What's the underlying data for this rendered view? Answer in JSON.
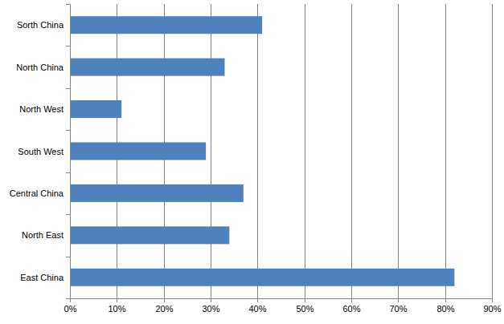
{
  "chart_data": {
    "type": "bar",
    "orientation": "horizontal",
    "categories": [
      "Sorth China",
      "North China",
      "North West",
      "South West",
      "Central China",
      "North East",
      "East China"
    ],
    "values": [
      41,
      33,
      11,
      29,
      37,
      34,
      82
    ],
    "color": "#4f81bd",
    "xlim": [
      0,
      90
    ],
    "xticks": [
      {
        "value": 0,
        "label": "0%"
      },
      {
        "value": 10,
        "label": "10%"
      },
      {
        "value": 20,
        "label": "20%"
      },
      {
        "value": 30,
        "label": "30%"
      },
      {
        "value": 40,
        "label": "40%"
      },
      {
        "value": 50,
        "label": "50%"
      },
      {
        "value": 60,
        "label": "60%"
      },
      {
        "value": 70,
        "label": "70%"
      },
      {
        "value": 80,
        "label": "80%"
      },
      {
        "value": 90,
        "label": "90%"
      }
    ],
    "grid": true
  }
}
